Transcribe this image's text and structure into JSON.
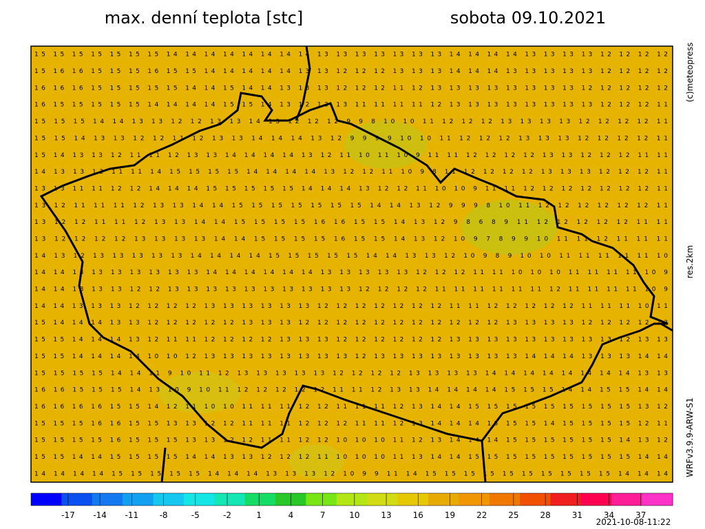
{
  "header": {
    "title": "max. denní teplota [stc]",
    "date": "sobota 09.10.2021"
  },
  "side_labels": {
    "copyright": "(c)meteopress",
    "resolution": "res.2km",
    "model": "WRFv3.9.9-ARW-S1"
  },
  "footer": {
    "timestamp": "2021-10-08-11:22"
  },
  "map": {
    "background": "#e6b400",
    "rows": [
      "15 15 15 15 15 15 15 14 14 14 14 14 14 14 14 13 13 13 13 13 13 13 14 14 14 14 13 13 13 13 12 12 12 12",
      "15 16 16 15 15 15 16 15 15 14 14 14 14 14 13 13 12 12 12 13 13 13 14 14 14 13 13 13 13 13 12 12 12 12",
      "16 16 16 15 15 15 15 15 14 14 15 14 14 13 13 13 12 12 12 11 12 13 13 13 13 13 13 13 13 12 12 12 12 12",
      "16 15 15 15 15 15 14 14 14 14 15 15 14 13 12 13 13 11 11 11 11 12 13 13 13 13 13 13 13 13 12 12 12 11",
      "15 15 15 14 14 13 13 12 12 13 13 14 13 12 12 12 9 9 8 10 10 11 12 12 12 13 13 13 13 12 12 12 12 11",
      "15 15 14 13 13 12 12 11 12 13 13 14 14 14 13 12 9 9 9 9 10 10 11 12 12 12 13 13 13 12 12 12 12 11",
      "15 14 13 13 12 11 11 12 13 13 14 14 14 14 13 12 11 10 11 10 9 11 11 12 12 12 12 13 13 12 12 12 11 11",
      "14 13 13 12 11 11 14 15 15 15 15 14 14 14 14 13 12 12 11 10 9 8 11 12 12 12 12 13 13 13 12 12 12 11",
      "13 13 11 11 12 12 14 14 14 15 15 15 15 15 14 14 14 13 12 12 11 10 10 9 11 11 12 12 12 12 12 12 12 11",
      "13 12 11 11 11 12 13 13 14 14 15 15 15 15 15 15 15 14 14 13 12 9 9 9 8 10 11 12 12 12 12 12 12 11",
      "13 12 12 11 11 12 13 13 14 14 15 15 15 15 16 16 15 15 14 13 12 9 8 6 8 9 11 12 12 12 12 12 11 11",
      "13 12 12 12 12 13 13 13 13 14 14 15 15 15 15 16 15 15 14 13 12 10 9 7 8 9 9 10 11 11 12 11 11 11",
      "14 13 12 13 13 13 13 13 14 14 14 14 15 15 15 15 15 14 14 13 13 12 10 9 8 9 10 10 11 11 11 11 11 10",
      "14 14 13 13 13 13 13 13 13 14 14 14 14 14 14 13 13 13 13 13 12 12 12 11 11 10 10 10 11 11 11 11 10 9",
      "14 14 13 13 13 12 12 13 13 13 13 13 13 13 13 13 13 12 12 12 12 11 11 11 11 11 11 12 11 11 11 11 10 9",
      "14 14 13 13 13 12 12 12 12 13 13 13 13 13 13 12 12 12 12 12 12 12 11 11 12 12 12 12 12 11 11 11 10 11",
      "15 14 14 14 13 13 12 12 12 12 12 13 13 13 12 12 12 12 12 12 12 12 12 12 12 13 13 13 13 12 12 12 12 13",
      "15 15 14 14 14 13 12 11 11 12 12 12 12 13 13 13 12 12 12 12 12 12 13 13 13 13 13 13 13 13 13 12 13 13",
      "15 15 14 14 14 14 10 10 12 13 13 13 13 13 13 13 13 12 13 13 13 13 13 13 13 13 14 14 14 13 13 13 14 14",
      "15 15 15 15 14 14 11 9 10 11 12 13 13 13 13 13 12 12 12 12 13 13 13 13 14 14 14 14 14 14 14 14 13 13",
      "16 16 15 15 15 14 13 10 9 10 11 12 12 12 12 12 11 11 12 13 13 14 14 14 14 15 15 15 14 14 15 15 14 14",
      "16 16 16 16 15 15 14 12 11 10 10 11 11 11 12 12 11 11 11 12 13 14 14 15 15 15 15 15 15 15 15 15 13 12",
      "15 15 15 16 16 15 15 13 13 12 12 11 11 11 12 12 12 11 11 12 13 14 14 14 15 15 15 14 15 15 15 15 12 11",
      "15 15 15 15 16 15 15 15 13 13 12 12 11 11 12 12 10 10 10 11 12 13 14 14 14 15 15 15 15 15 15 14 13 12",
      "15 15 14 14 15 15 15 15 14 14 13 13 12 12 12 11 10 10 10 11 13 14 14 15 15 15 15 15 15 15 15 15 14 14",
      "14 14 14 14 15 15 15 15 15 14 14 14 13 13 13 12 10 9 9 11 14 15 15 15 15 15 15 15 15 15 15 14 14 14"
    ]
  },
  "colorbar": {
    "clim": [
      -20.5,
      40
    ],
    "ticks": [
      -17,
      -14,
      -11,
      -8,
      -5,
      -2,
      1,
      4,
      7,
      10,
      13,
      16,
      19,
      22,
      25,
      28,
      31,
      34,
      37
    ],
    "colors": [
      "#0000ff",
      "#0a50f0",
      "#1478f0",
      "#14a0f0",
      "#14c8f0",
      "#14e6e6",
      "#14e6b4",
      "#14dc64",
      "#28c828",
      "#78e614",
      "#b4e614",
      "#d2dc14",
      "#e6c800",
      "#e6aa00",
      "#f09600",
      "#f07800",
      "#f05000",
      "#f01e1e",
      "#ff0050",
      "#ff1e96",
      "#ff32c8"
    ]
  }
}
